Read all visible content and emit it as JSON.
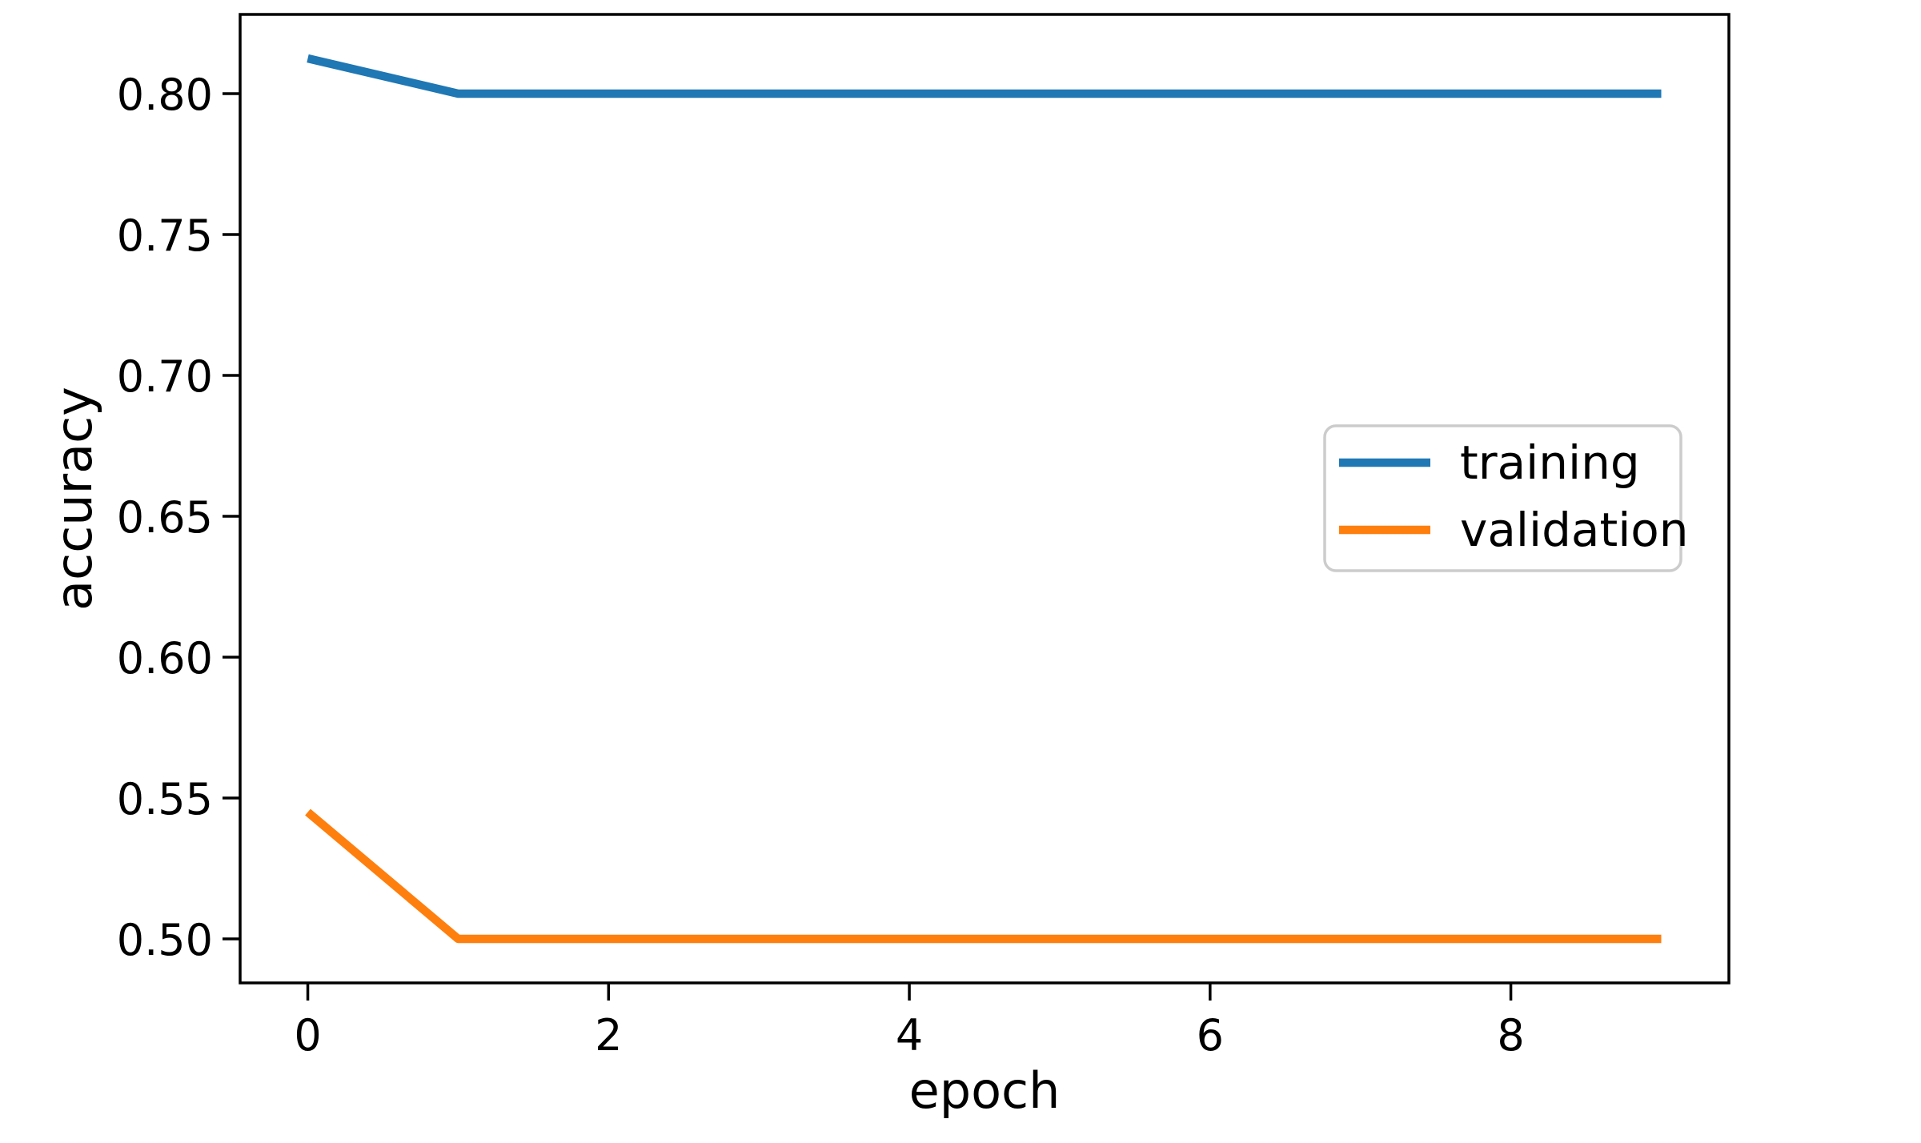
{
  "figure": {
    "background": "#ffffff"
  },
  "chart_data": {
    "type": "line",
    "title": "",
    "xlabel": "epoch",
    "ylabel": "accuracy",
    "x": [
      0,
      1,
      2,
      3,
      4,
      5,
      6,
      7,
      8,
      9
    ],
    "series": [
      {
        "name": "training",
        "color": "#1f77b4",
        "values": [
          0.8125,
          0.8,
          0.8,
          0.8,
          0.8,
          0.8,
          0.8,
          0.8,
          0.8,
          0.8
        ]
      },
      {
        "name": "validation",
        "color": "#ff7f0e",
        "values": [
          0.545,
          0.5,
          0.5,
          0.5,
          0.5,
          0.5,
          0.5,
          0.5,
          0.5,
          0.5
        ]
      }
    ],
    "xlim": [
      -0.45,
      9.45
    ],
    "ylim": [
      0.484375,
      0.828125
    ],
    "xticks": [
      0,
      2,
      4,
      6,
      8
    ],
    "xtick_labels": [
      "0",
      "2",
      "4",
      "6",
      "8"
    ],
    "yticks": [
      0.5,
      0.55,
      0.6,
      0.65,
      0.7,
      0.75,
      0.8
    ],
    "ytick_labels": [
      "0.50",
      "0.55",
      "0.60",
      "0.65",
      "0.70",
      "0.75",
      "0.80"
    ],
    "grid": false,
    "legend": {
      "position": "center right",
      "entries": [
        "training",
        "validation"
      ]
    }
  }
}
